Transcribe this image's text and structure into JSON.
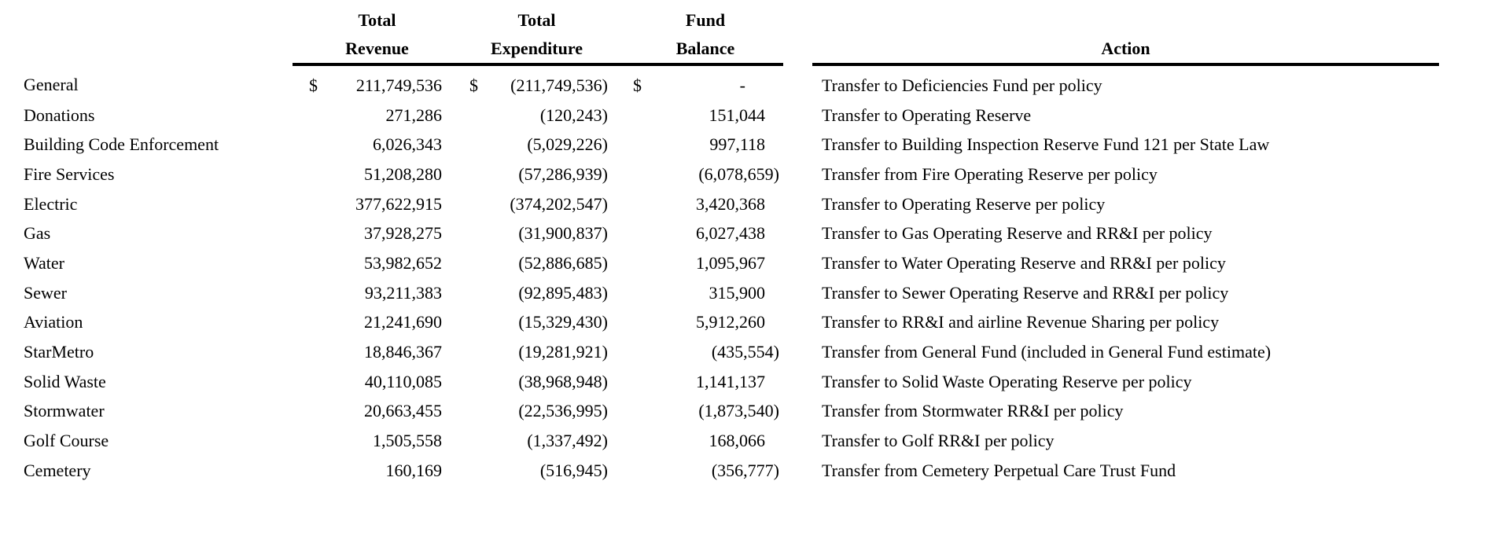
{
  "colors": {
    "text": "#000000",
    "background": "#ffffff",
    "rule": "#000000"
  },
  "table": {
    "currency_symbol": "$",
    "zero_placeholder": "-",
    "headers": {
      "revenue_line1": "Total",
      "revenue_line2": "Revenue",
      "expenditure_line1": "Total",
      "expenditure_line2": "Expenditure",
      "balance_line1": "Fund",
      "balance_line2": "Balance",
      "action": "Action"
    },
    "rows": [
      {
        "fund": "General",
        "currency": true,
        "revenue": "211,749,536",
        "expenditure": "(211,749,536)",
        "balance": "-",
        "action": "Transfer to Deficiencies Fund per policy"
      },
      {
        "fund": "Donations",
        "currency": false,
        "revenue": "271,286",
        "expenditure": "(120,243)",
        "balance": "151,044",
        "action": "Transfer to Operating Reserve"
      },
      {
        "fund": "Building Code Enforcement",
        "currency": false,
        "revenue": "6,026,343",
        "expenditure": "(5,029,226)",
        "balance": "997,118",
        "action": "Transfer to Building Inspection Reserve Fund 121 per State Law"
      },
      {
        "fund": "Fire Services",
        "currency": false,
        "revenue": "51,208,280",
        "expenditure": "(57,286,939)",
        "balance": "(6,078,659)",
        "action": "Transfer from Fire Operating Reserve per policy"
      },
      {
        "fund": "Electric",
        "currency": false,
        "revenue": "377,622,915",
        "expenditure": "(374,202,547)",
        "balance": "3,420,368",
        "action": "Transfer to Operating Reserve per policy"
      },
      {
        "fund": "Gas",
        "currency": false,
        "revenue": "37,928,275",
        "expenditure": "(31,900,837)",
        "balance": "6,027,438",
        "action": "Transfer to Gas Operating Reserve and RR&I per policy"
      },
      {
        "fund": "Water",
        "currency": false,
        "revenue": "53,982,652",
        "expenditure": "(52,886,685)",
        "balance": "1,095,967",
        "action": "Transfer to Water Operating Reserve and RR&I per policy"
      },
      {
        "fund": "Sewer",
        "currency": false,
        "revenue": "93,211,383",
        "expenditure": "(92,895,483)",
        "balance": "315,900",
        "action": "Transfer to Sewer Operating Reserve and RR&I per policy"
      },
      {
        "fund": "Aviation",
        "currency": false,
        "revenue": "21,241,690",
        "expenditure": "(15,329,430)",
        "balance": "5,912,260",
        "action": "Transfer to RR&I and airline Revenue Sharing per policy"
      },
      {
        "fund": "StarMetro",
        "currency": false,
        "revenue": "18,846,367",
        "expenditure": "(19,281,921)",
        "balance": "(435,554)",
        "action": "Transfer from General Fund (included in General Fund estimate)"
      },
      {
        "fund": "Solid Waste",
        "currency": false,
        "revenue": "40,110,085",
        "expenditure": "(38,968,948)",
        "balance": "1,141,137",
        "action": "Transfer to Solid Waste Operating Reserve per policy"
      },
      {
        "fund": "Stormwater",
        "currency": false,
        "revenue": "20,663,455",
        "expenditure": "(22,536,995)",
        "balance": "(1,873,540)",
        "action": "Transfer from Stormwater RR&I per policy"
      },
      {
        "fund": "Golf Course",
        "currency": false,
        "revenue": "1,505,558",
        "expenditure": "(1,337,492)",
        "balance": "168,066",
        "action": "Transfer to Golf RR&I per policy"
      },
      {
        "fund": "Cemetery",
        "currency": false,
        "revenue": "160,169",
        "expenditure": "(516,945)",
        "balance": "(356,777)",
        "action": "Transfer from Cemetery Perpetual Care Trust Fund"
      }
    ]
  }
}
